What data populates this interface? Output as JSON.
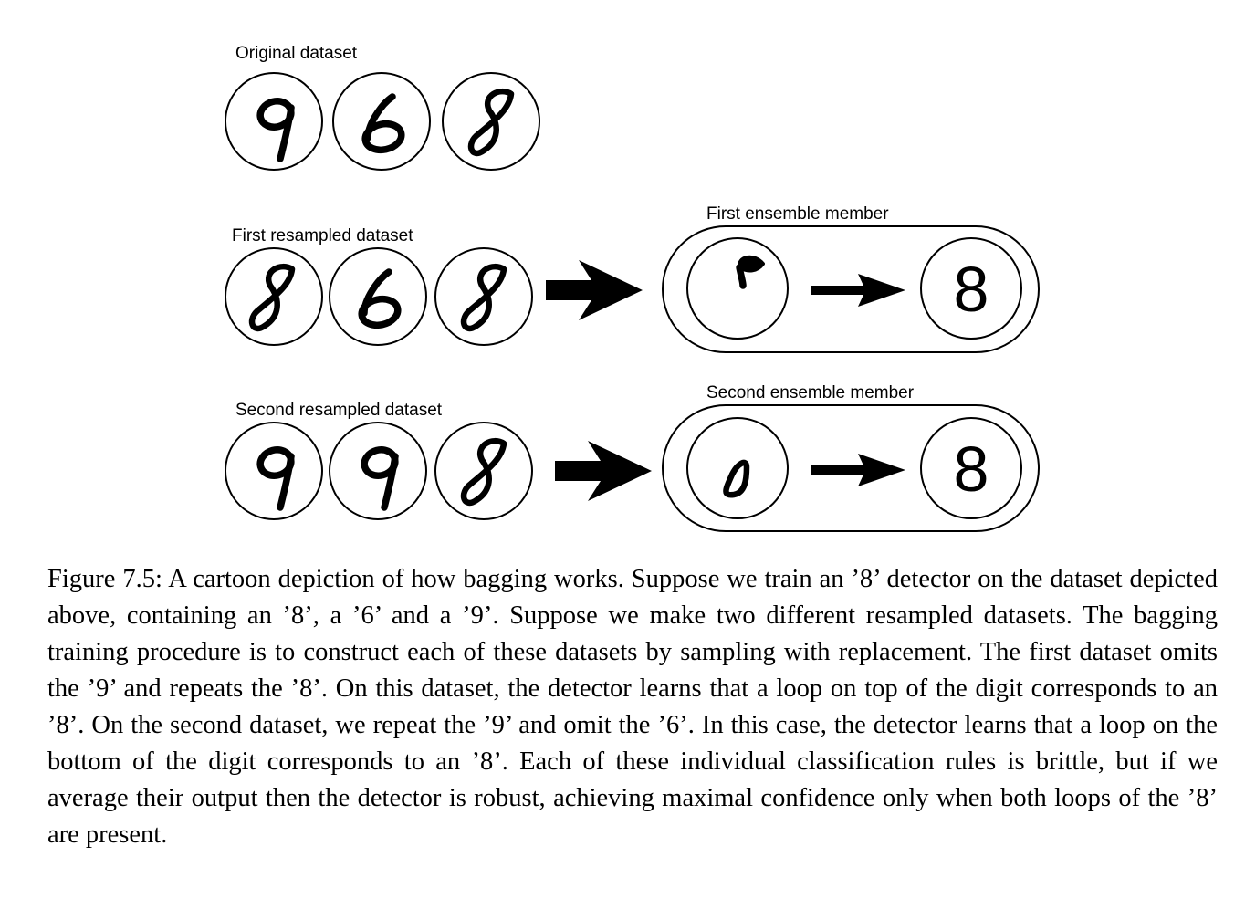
{
  "diagram": {
    "original": {
      "label": "Original dataset",
      "digits": [
        "9",
        "6",
        "8"
      ]
    },
    "first": {
      "label": "First resampled dataset",
      "digits": [
        "8",
        "6",
        "8"
      ],
      "member_label": "First ensemble member",
      "learned_feature": "loop-on-top",
      "output": "8"
    },
    "second": {
      "label": "Second resampled dataset",
      "digits": [
        "9",
        "9",
        "8"
      ],
      "member_label": "Second ensemble member",
      "learned_feature": "loop-on-bottom",
      "output": "8"
    }
  },
  "caption": {
    "text": "Figure 7.5: A cartoon depiction of how bagging works. Suppose we train an ’8’ detector on the dataset depicted above, containing an ’8’, a ’6’ and a ’9’. Suppose we make two different resampled datasets. The bagging training procedure is to construct each of these datasets by sampling with replacement. The first dataset omits the ’9’ and repeats the ’8’. On this dataset, the detector learns that a loop on top of the digit corresponds to an ’8’. On the second dataset, we repeat the ’9’ and omit the ’6’. In this case, the detector learns that a loop on the bottom of the digit corresponds to an ’8’. Each of these individual classification rules is brittle, but if we average their output then the detector is robust, achieving maximal confidence only when both loops of the ’8’ are present."
  }
}
